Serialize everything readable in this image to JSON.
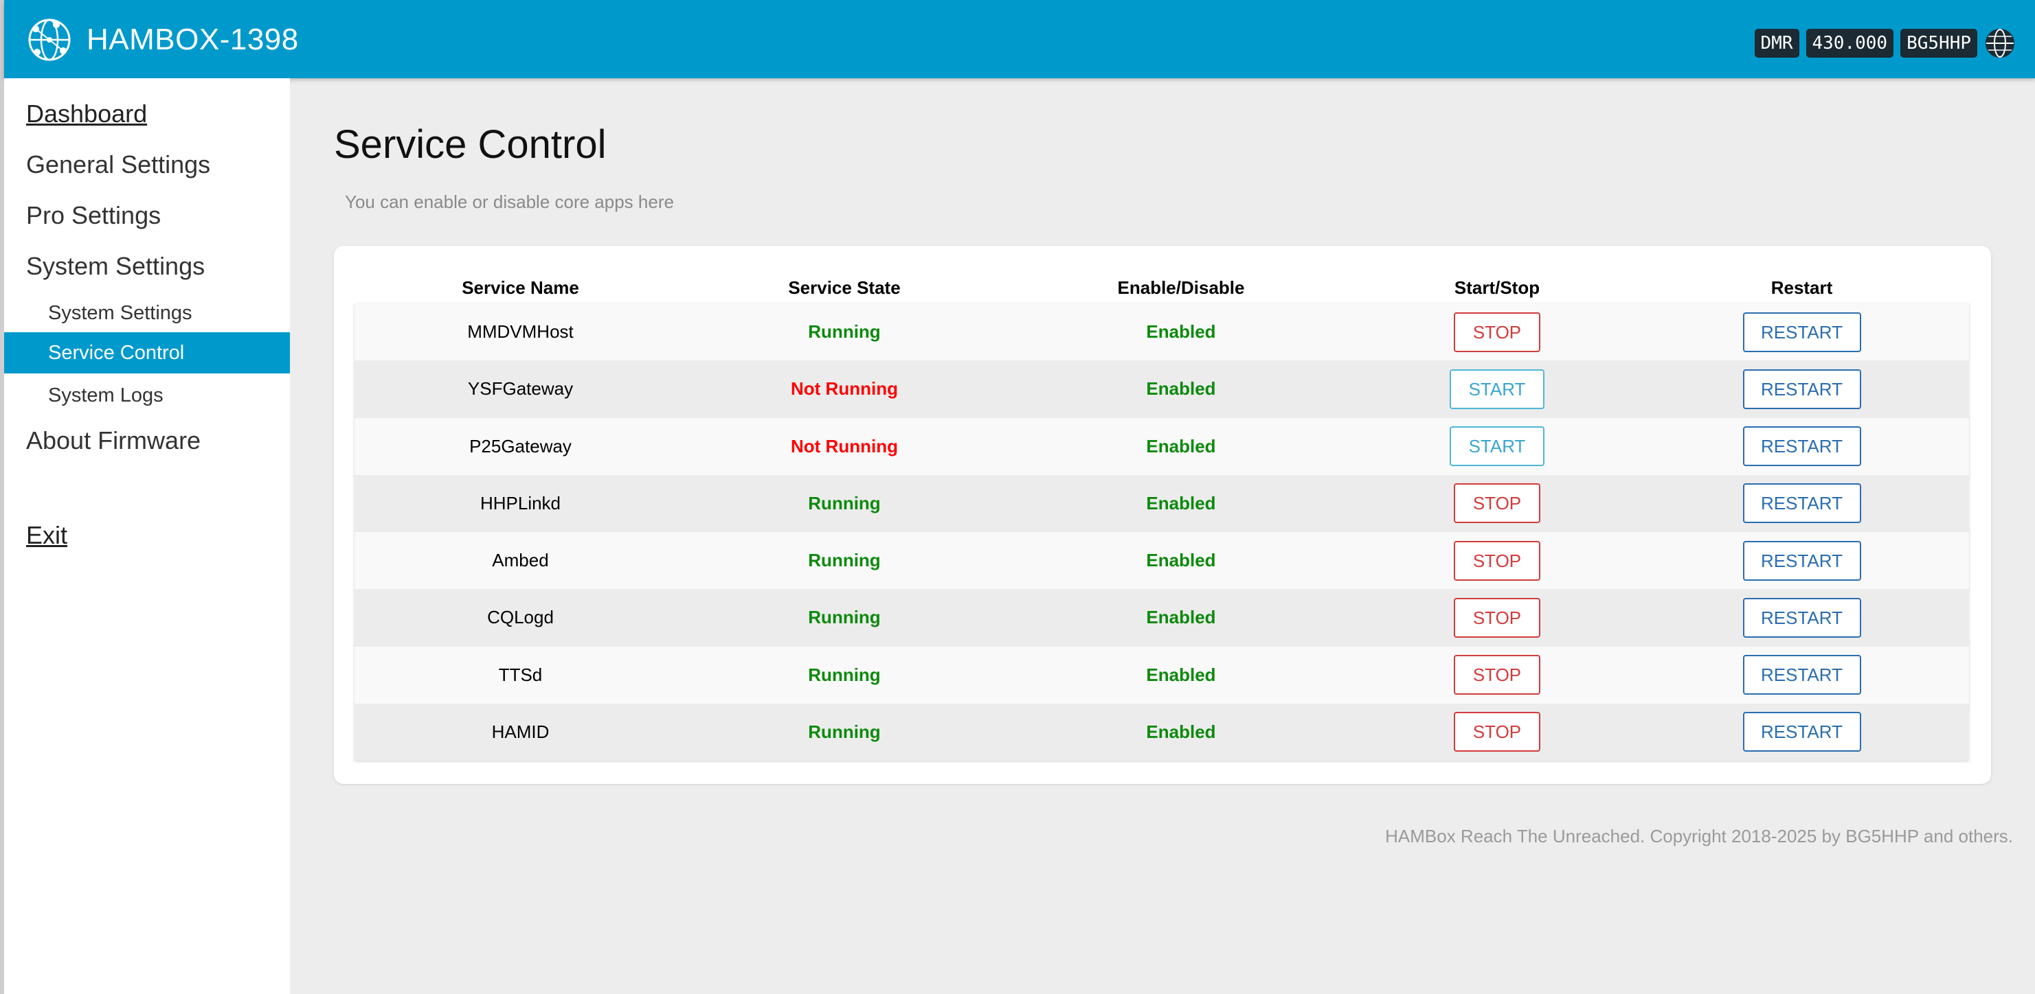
{
  "header": {
    "app_title": "HAMBOX-1398",
    "mode_badge": "DMR",
    "frequency_badge": "430.000",
    "callsign_badge": "BG5HHP"
  },
  "sidebar": {
    "dashboard": "Dashboard",
    "general_settings": "General Settings",
    "pro_settings": "Pro Settings",
    "system_settings": "System Settings",
    "sub_system_settings": "System Settings",
    "sub_service_control": "Service Control",
    "sub_system_logs": "System Logs",
    "about_firmware": "About Firmware",
    "exit": "Exit"
  },
  "main": {
    "title": "Service Control",
    "subtitle": "You can enable or disable core apps here"
  },
  "table": {
    "headers": [
      "Service Name",
      "Service State",
      "Enable/Disable",
      "Start/Stop",
      "Restart"
    ],
    "rows": [
      {
        "name": "MMDVMHost",
        "state": "Running",
        "enabled": "Enabled",
        "action": "STOP",
        "restart": "RESTART"
      },
      {
        "name": "YSFGateway",
        "state": "Not Running",
        "enabled": "Enabled",
        "action": "START",
        "restart": "RESTART"
      },
      {
        "name": "P25Gateway",
        "state": "Not Running",
        "enabled": "Enabled",
        "action": "START",
        "restart": "RESTART"
      },
      {
        "name": "HHPLinkd",
        "state": "Running",
        "enabled": "Enabled",
        "action": "STOP",
        "restart": "RESTART"
      },
      {
        "name": "Ambed",
        "state": "Running",
        "enabled": "Enabled",
        "action": "STOP",
        "restart": "RESTART"
      },
      {
        "name": "CQLogd",
        "state": "Running",
        "enabled": "Enabled",
        "action": "STOP",
        "restart": "RESTART"
      },
      {
        "name": "TTSd",
        "state": "Running",
        "enabled": "Enabled",
        "action": "STOP",
        "restart": "RESTART"
      },
      {
        "name": "HAMID",
        "state": "Running",
        "enabled": "Enabled",
        "action": "STOP",
        "restart": "RESTART"
      }
    ]
  },
  "footer": {
    "text": "HAMBox Reach The Unreached. Copyright 2018-2025 by BG5HHP and others."
  },
  "icons": {
    "logo": "network-globe-icon",
    "status": "globe-icon"
  },
  "colors": {
    "brand": "#0099cc",
    "running": "#0c8a0c",
    "not_running": "#ff0000",
    "stop": "#d33b3b",
    "start": "#3aa6cf",
    "restart": "#2a6db0"
  }
}
